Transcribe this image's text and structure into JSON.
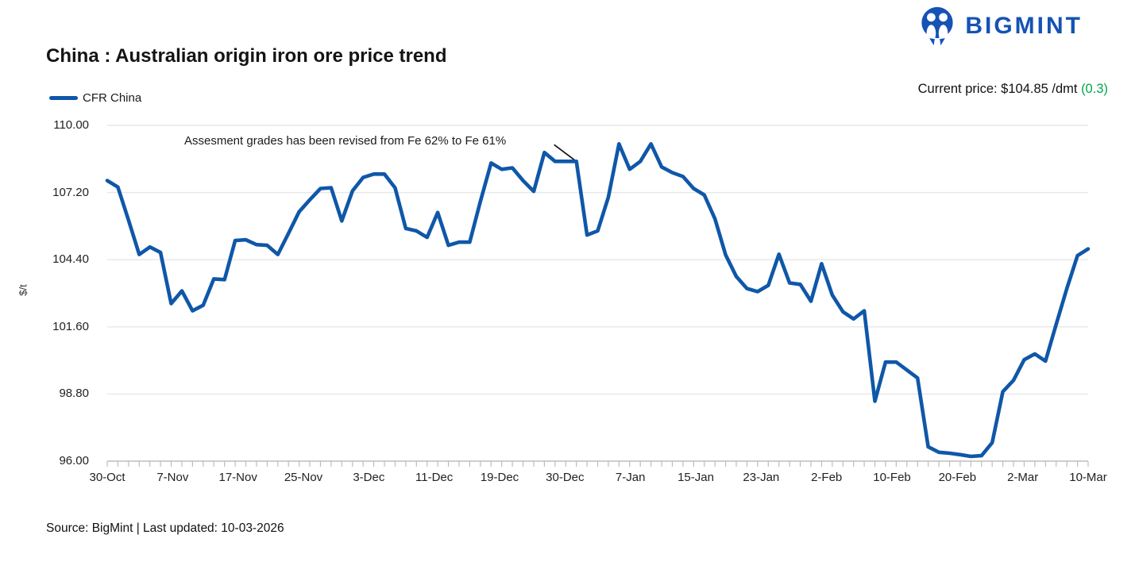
{
  "logo": {
    "text": "BIGMINT",
    "icon": "bigmint-people-icon"
  },
  "header": {
    "title": "China : Australian origin iron ore price trend"
  },
  "legend": {
    "label": "CFR China"
  },
  "current_price": {
    "prefix": "Current price: $104.85 /dmt ",
    "change": "(0.3)"
  },
  "annotation": {
    "text": "Assesment grades has been revised from Fe 62% to Fe 61%"
  },
  "colors": {
    "brand_blue": "#1553b5",
    "line_blue": "#0f57a8",
    "positive_green": "#00a651",
    "gridline": "#e7e7e7",
    "axis": "#bdbdbd"
  },
  "chart_data": {
    "type": "line",
    "title": "China : Australian origin iron ore price trend",
    "ylabel": "$/t",
    "xlabel": "",
    "ylim": [
      96,
      110
    ],
    "grid": "horizontal",
    "legend_position": "top-left",
    "yticks": [
      "96.00",
      "98.80",
      "101.60",
      "104.40",
      "107.20",
      "110.00"
    ],
    "x_tick_labels": [
      "30-Oct",
      "7-Nov",
      "17-Nov",
      "25-Nov",
      "3-Dec",
      "11-Dec",
      "19-Dec",
      "30-Dec",
      "7-Jan",
      "15-Jan",
      "23-Jan",
      "2-Feb",
      "10-Feb",
      "20-Feb",
      "2-Mar",
      "10-Mar"
    ],
    "series": [
      {
        "name": "CFR China",
        "color": "#0f57a8",
        "values": [
          107.7,
          107.43,
          106.05,
          104.62,
          104.93,
          104.7,
          102.57,
          103.1,
          102.27,
          102.5,
          103.6,
          103.57,
          105.2,
          105.23,
          105.03,
          105.0,
          104.62,
          105.5,
          106.4,
          106.9,
          107.37,
          107.4,
          106.02,
          107.27,
          107.83,
          107.97,
          107.97,
          107.4,
          105.7,
          105.6,
          105.33,
          106.37,
          105.0,
          105.13,
          105.13,
          106.83,
          108.43,
          108.17,
          108.23,
          107.7,
          107.25,
          108.87,
          108.5,
          108.5,
          108.5,
          105.43,
          105.6,
          107.0,
          109.23,
          108.17,
          108.5,
          109.23,
          108.27,
          108.03,
          107.87,
          107.37,
          107.1,
          106.1,
          104.6,
          103.7,
          103.2,
          103.07,
          103.33,
          104.63,
          103.43,
          103.37,
          102.67,
          104.23,
          102.93,
          102.23,
          101.93,
          102.27,
          98.5,
          100.13,
          100.13,
          99.8,
          99.47,
          96.6,
          96.37,
          96.33,
          96.27,
          96.2,
          96.23,
          96.77,
          98.9,
          99.37,
          100.23,
          100.47,
          100.17,
          101.7,
          103.2,
          104.57,
          104.85
        ]
      }
    ],
    "annotation": {
      "text": "Assesment grades has been revised from Fe 62% to Fe 61%",
      "points_to_index": 44,
      "points_to_value": 108.5
    },
    "current_price": "$104.85 /dmt",
    "change": 0.3
  },
  "footer": {
    "source": "Source: BigMint | Last updated: 10-03-2026"
  }
}
